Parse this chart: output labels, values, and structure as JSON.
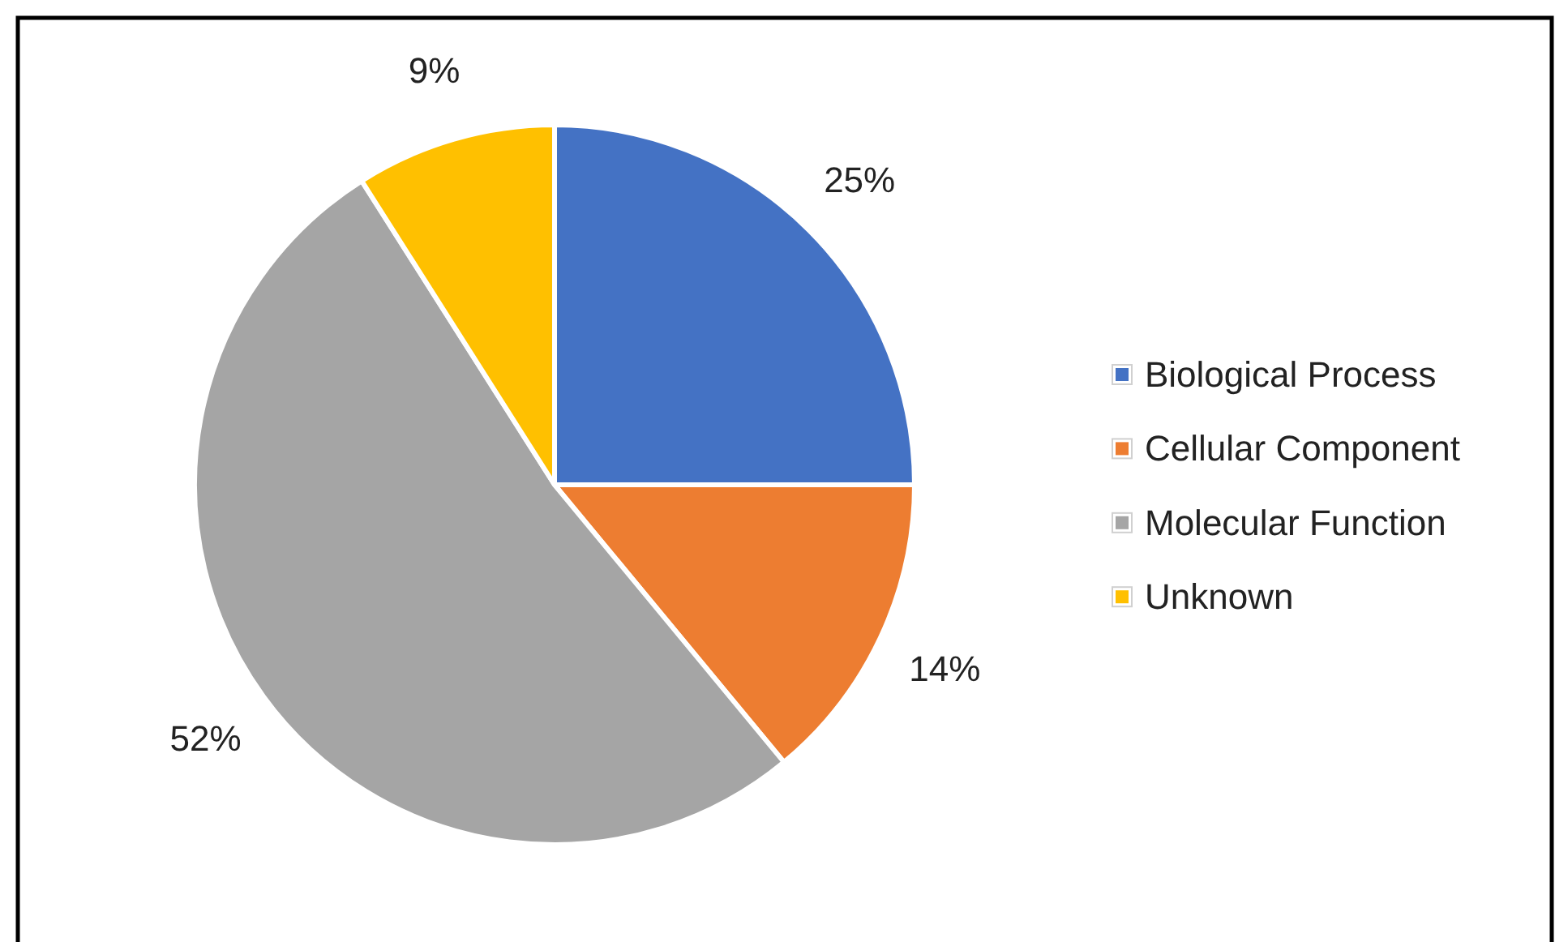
{
  "chart_data": {
    "type": "pie",
    "categories": [
      "Biological Process",
      "Cellular Component",
      "Molecular Function",
      "Unknown"
    ],
    "values": [
      25,
      14,
      52,
      9
    ],
    "value_labels": [
      "25%",
      "14%",
      "52%",
      "9%"
    ],
    "colors": [
      "#4472c4",
      "#ed7d31",
      "#a5a5a5",
      "#ffc000"
    ],
    "legend": "right"
  }
}
